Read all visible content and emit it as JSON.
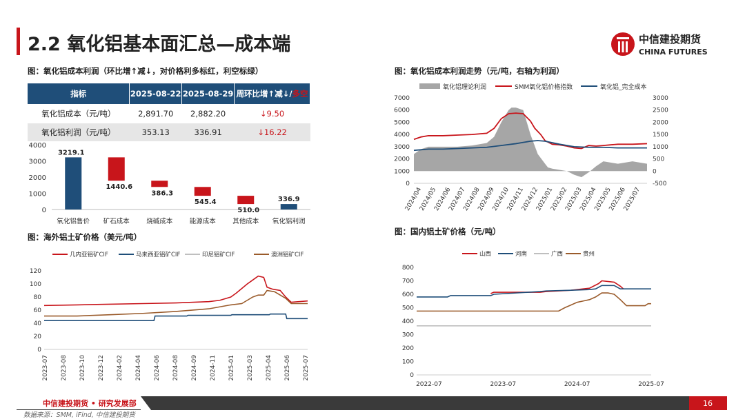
{
  "header": {
    "title": "2.2 氧化铝基本面汇总—成本端",
    "logo_cn": "中信建投期货",
    "logo_en": "CHINA FUTURES"
  },
  "colors": {
    "brand_red": "#c8151b",
    "navy": "#1f4e79",
    "brown": "#9a5b2b",
    "gray": "#a6a6a6",
    "light_gray": "#bfbfbf"
  },
  "table": {
    "caption": "图：氧化铝成本利润（环比增↑减↓，对价格利多标红，利空标绿）",
    "headers": [
      "指标",
      "2025-08-22",
      "2025-08-29",
      "周环比增↑减↓/",
      "多空"
    ],
    "rows": [
      {
        "name": "氧化铝成本（元/吨）",
        "v1": "2,891.70",
        "v2": "2,882.20",
        "chg": "↓9.50"
      },
      {
        "name": "氧化铝利润（元/吨）",
        "v1": "353.13",
        "v2": "336.91",
        "chg": "↓16.22"
      }
    ]
  },
  "chart_data": [
    {
      "id": "waterfall",
      "type": "bar",
      "title": "",
      "categories": [
        "氧化铝售价",
        "矿石成本",
        "烧碱成本",
        "能源成本",
        "其他成本",
        "氧化铝利润"
      ],
      "values": [
        3219.1,
        1440.6,
        386.3,
        545.4,
        510.0,
        336.9
      ],
      "labels": [
        "3219.1",
        "1440.6",
        "386.3",
        "545.4",
        "510.0",
        "336.9"
      ],
      "ylim": [
        0,
        4000
      ],
      "yticks": [
        "0",
        "1000",
        "2000",
        "3000",
        "4000"
      ],
      "colors": [
        "#1f4e79",
        "#c8151b",
        "#c8151b",
        "#c8151b",
        "#c8151b",
        "#1f4e79"
      ]
    },
    {
      "id": "profit",
      "type": "line",
      "title": "图：氧化铝成本利润走势（元/吨，右轴为利润）",
      "legend": [
        "氧化铝理论利润",
        "SMM氧化铝价格指数",
        "氧化铝_完全成本"
      ],
      "x_ticks": [
        "2024/04",
        "2024/05",
        "2024/06",
        "2024/07",
        "2024/08",
        "2024/09",
        "2024/10",
        "2024/11",
        "2024/12",
        "2025/01",
        "2025/02",
        "2025/03",
        "2025/04",
        "2025/05",
        "2025/06",
        "2025/07"
      ],
      "x_range": [
        0,
        16
      ],
      "ylim_left": [
        0,
        7000
      ],
      "ylim_right": [
        -500,
        3000
      ],
      "yticks_left": [
        "0",
        "1000",
        "2000",
        "3000",
        "4000",
        "5000",
        "6000",
        "7000"
      ],
      "yticks_right": [
        "-500",
        "0",
        "500",
        "1000",
        "1500",
        "2000",
        "2500",
        "3000"
      ],
      "series": [
        {
          "name": "氧化铝理论利润",
          "axis": "right",
          "type": "area",
          "x": [
            0,
            0.5,
            1,
            2,
            3,
            4,
            5,
            5.5,
            6,
            6.5,
            6.7,
            7,
            7.5,
            8,
            8.5,
            9,
            9.2,
            9.5,
            10,
            10.5,
            11,
            11.5,
            12,
            12.5,
            13,
            13.5,
            14,
            15,
            15.5,
            16
          ],
          "y": [
            700,
            900,
            1000,
            1000,
            1000,
            1050,
            1150,
            1400,
            2000,
            2500,
            2600,
            2600,
            2500,
            1500,
            700,
            300,
            150,
            100,
            50,
            0,
            -150,
            -250,
            -50,
            200,
            400,
            350,
            300,
            400,
            350,
            300
          ]
        },
        {
          "name": "SMM氧化铝价格指数",
          "axis": "left",
          "x": [
            0,
            0.5,
            1,
            2,
            3,
            4,
            5,
            5.5,
            6,
            6.5,
            7,
            7.5,
            8,
            8.3,
            8.7,
            9,
            9.5,
            10,
            10.5,
            11,
            11.5,
            12,
            12.5,
            13,
            13.5,
            14,
            15,
            16
          ],
          "y": [
            3600,
            3800,
            3900,
            3900,
            3950,
            4000,
            4100,
            4500,
            5300,
            5700,
            5750,
            5700,
            5100,
            4500,
            4000,
            3500,
            3200,
            3150,
            3050,
            2900,
            2850,
            3100,
            3050,
            3100,
            3150,
            3200,
            3200,
            3250
          ]
        },
        {
          "name": "氧化铝_完全成本",
          "axis": "left",
          "x": [
            0,
            1,
            2,
            3,
            4,
            5,
            6,
            7,
            8,
            8.5,
            9,
            10,
            11,
            12,
            13,
            14,
            15,
            16
          ],
          "y": [
            2700,
            2800,
            2800,
            2850,
            2900,
            2950,
            3100,
            3250,
            3450,
            3500,
            3450,
            3200,
            3000,
            2950,
            2950,
            2900,
            2900,
            2900
          ]
        }
      ]
    },
    {
      "id": "overseas",
      "type": "line",
      "title": "图：海外铝土矿价格（美元/吨）",
      "legend": [
        "几内亚铝矿CIF",
        "马来西亚铝矿CIF",
        "印尼铝矿CIF",
        "澳洲铝矿CIF"
      ],
      "x_ticks": [
        "2023-07",
        "2023-08",
        "2023-10",
        "2023-12",
        "2024-02",
        "2024-04",
        "2024-06",
        "2024-08",
        "2024-09",
        "2024-11",
        "2025-01",
        "2025-03",
        "2025-04",
        "2025-06",
        "2025-07"
      ],
      "x_range": [
        0,
        24
      ],
      "ylim": [
        0,
        120
      ],
      "yticks": [
        "0",
        "20",
        "40",
        "60",
        "80",
        "100",
        "120"
      ],
      "series": [
        {
          "name": "几内亚铝矿CIF",
          "x": [
            0,
            3,
            6,
            9,
            12,
            15,
            16,
            17,
            17.5,
            18,
            18.5,
            19,
            19.5,
            20,
            20.3,
            20.8,
            21.5,
            22,
            22.5,
            24
          ],
          "y": [
            67,
            68,
            69,
            70,
            71,
            73,
            75,
            80,
            86,
            93,
            100,
            106,
            112,
            110,
            95,
            92,
            90,
            80,
            72,
            74
          ]
        },
        {
          "name": "马来西亚铝矿CIF",
          "x": [
            0,
            3,
            7,
            10,
            10.1,
            13,
            13.1,
            17,
            17.1,
            20.5,
            20.6,
            22,
            22.1,
            24
          ],
          "y": [
            44,
            44,
            44,
            44,
            51,
            51,
            52,
            52,
            53,
            53,
            54,
            54,
            47,
            47
          ]
        },
        {
          "name": "印尼铝矿CIF",
          "x": [
            0,
            24
          ],
          "y": [
            null,
            null
          ]
        },
        {
          "name": "澳洲铝矿CIF",
          "x": [
            0,
            3,
            6,
            9,
            12,
            15,
            16,
            17,
            18,
            18.5,
            19,
            19.5,
            20,
            20.3,
            21,
            22,
            22.5,
            24
          ],
          "y": [
            51,
            51,
            53,
            55,
            58,
            62,
            65,
            68,
            70,
            75,
            80,
            83,
            83,
            90,
            88,
            78,
            70,
            70
          ]
        }
      ]
    },
    {
      "id": "domestic",
      "type": "line",
      "title": "图：国内铝土矿价格（元/吨）",
      "legend": [
        "山西",
        "河南",
        "广西",
        "贵州"
      ],
      "x_ticks": [
        "2022-07",
        "2023-07",
        "2024-07",
        "2025-07"
      ],
      "x_range": [
        0,
        38
      ],
      "ylim": [
        0,
        800
      ],
      "yticks": [
        "0",
        "100",
        "200",
        "300",
        "400",
        "500",
        "600",
        "700",
        "800"
      ],
      "series": [
        {
          "name": "山西",
          "x": [
            12,
            12.5,
            20,
            21,
            25,
            28,
            29.5,
            30,
            32,
            33,
            33.5
          ],
          "y": [
            605,
            615,
            615,
            620,
            630,
            645,
            680,
            700,
            690,
            660,
            640
          ]
        },
        {
          "name": "河南",
          "x": [
            0,
            5,
            5.5,
            12,
            12.5,
            20,
            21,
            25,
            28,
            29,
            30,
            32,
            33,
            34,
            38
          ],
          "y": [
            580,
            580,
            590,
            590,
            600,
            620,
            625,
            630,
            635,
            640,
            665,
            665,
            640,
            640,
            640
          ]
        },
        {
          "name": "广西",
          "x": [
            0,
            38
          ],
          "y": [
            365,
            365
          ]
        },
        {
          "name": "贵州",
          "x": [
            0,
            10,
            20,
            23,
            24,
            25,
            26,
            27,
            28,
            29,
            30,
            31,
            32,
            33,
            34,
            37,
            37.5,
            38
          ],
          "y": [
            475,
            475,
            475,
            475,
            500,
            520,
            540,
            550,
            560,
            580,
            610,
            610,
            600,
            560,
            515,
            515,
            530,
            530
          ]
        }
      ]
    }
  ],
  "footer": {
    "org": "中信建投期货 • 研究发展部",
    "page": "16",
    "source": "数据来源：SMM, iFind, 中信建投期货"
  }
}
